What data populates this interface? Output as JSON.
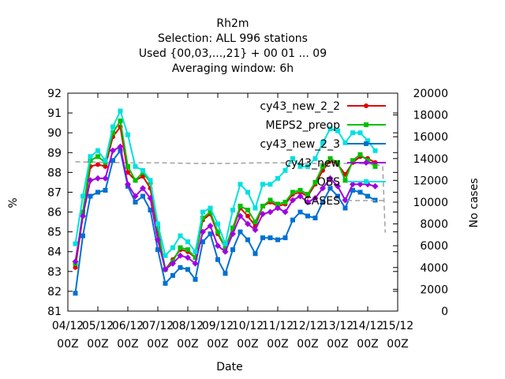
{
  "chart_data": {
    "type": "line",
    "title_lines": [
      "Rh2m",
      "Selection: ALL    996 stations",
      "Used {00,03,...,21} + 00 01 ... 09",
      "Averaging window:  6h"
    ],
    "xlabel": "Date",
    "ylabel": "%",
    "y2label": "No cases",
    "ylim": [
      81,
      92
    ],
    "y2lim": [
      0,
      20000
    ],
    "grid": false,
    "legend_position": "top-right",
    "x_tick_labels": [
      "04/12\n00Z",
      "05/12\n00Z",
      "06/12\n00Z",
      "07/12\n00Z",
      "08/12\n00Z",
      "09/12\n00Z",
      "10/12\n00Z",
      "11/12\n00Z",
      "12/12\n00Z",
      "13/12\n00Z",
      "14/12\n00Z",
      "15/12\n00Z"
    ],
    "x_range_hours": [
      0,
      264
    ],
    "y_ticks": [
      81,
      82,
      83,
      84,
      85,
      86,
      87,
      88,
      89,
      90,
      91,
      92
    ],
    "y2_ticks": [
      0,
      2000,
      4000,
      6000,
      8000,
      10000,
      12000,
      14000,
      16000,
      18000,
      20000
    ],
    "x_hours": [
      6,
      12,
      18,
      24,
      30,
      36,
      42,
      48,
      54,
      60,
      66,
      72,
      78,
      84,
      90,
      96,
      102,
      108,
      114,
      120,
      126,
      132,
      138,
      144,
      150,
      156,
      162,
      168,
      174,
      180,
      186,
      192,
      198,
      204,
      210,
      216,
      222,
      228,
      234,
      240,
      246,
      252
    ],
    "series": [
      {
        "name": "cy43_new_2_2",
        "color": "#e00000",
        "marker": "circle",
        "values": [
          83.2,
          85.8,
          88.3,
          88.4,
          88.3,
          89.8,
          90.3,
          88.0,
          87.6,
          87.8,
          87.2,
          85.0,
          83.1,
          83.6,
          84.1,
          84.0,
          83.7,
          85.6,
          85.9,
          84.9,
          84.2,
          85.1,
          86.2,
          85.8,
          85.3,
          86.3,
          86.5,
          86.3,
          86.4,
          86.9,
          87.0,
          86.8,
          87.4,
          88.1,
          88.6,
          88.4,
          87.9,
          88.5,
          88.8,
          88.7,
          88.5,
          null
        ]
      },
      {
        "name": "MEPS2_preop",
        "color": "#00c000",
        "marker": "square",
        "values": [
          83.4,
          86.0,
          88.6,
          88.8,
          88.5,
          90.0,
          90.6,
          88.3,
          87.6,
          88.0,
          87.5,
          85.2,
          83.1,
          83.5,
          84.2,
          84.1,
          83.7,
          85.7,
          86.0,
          85.0,
          84.2,
          85.2,
          86.3,
          86.1,
          85.5,
          86.3,
          86.6,
          86.4,
          86.5,
          87.0,
          87.1,
          86.9,
          87.5,
          88.3,
          88.7,
          88.5,
          87.6,
          88.6,
          88.9,
          88.6,
          88.3,
          null
        ]
      },
      {
        "name": "cy43_new_2_3",
        "color": "#0070d0",
        "marker": "square",
        "values": [
          81.9,
          84.8,
          86.8,
          87.0,
          87.1,
          88.6,
          89.1,
          87.3,
          86.5,
          86.8,
          86.1,
          84.1,
          82.4,
          82.8,
          83.2,
          83.1,
          82.6,
          84.5,
          84.9,
          83.6,
          82.9,
          84.1,
          85.0,
          84.6,
          83.9,
          84.7,
          84.7,
          84.6,
          84.7,
          85.6,
          86.0,
          85.8,
          85.7,
          86.5,
          87.2,
          86.8,
          86.2,
          87.1,
          87.0,
          86.8,
          86.6,
          null
        ]
      },
      {
        "name": "cy43_new",
        "color": "#a000e0",
        "marker": "diamond",
        "values": [
          83.5,
          85.8,
          87.6,
          87.7,
          87.7,
          89.1,
          89.3,
          87.4,
          86.8,
          87.2,
          86.7,
          84.6,
          83.1,
          83.4,
          83.8,
          83.7,
          83.4,
          85.0,
          85.3,
          84.3,
          84.0,
          84.9,
          85.8,
          85.4,
          85.1,
          85.9,
          86.0,
          86.2,
          86.0,
          86.6,
          86.8,
          86.5,
          86.7,
          87.2,
          87.7,
          87.3,
          86.6,
          87.4,
          87.4,
          87.4,
          87.3,
          null
        ]
      },
      {
        "name": "OBS",
        "color": "#00e0e0",
        "marker": "square",
        "values": [
          84.4,
          86.8,
          88.8,
          89.1,
          88.6,
          90.3,
          91.1,
          89.9,
          88.3,
          88.1,
          87.6,
          85.4,
          83.8,
          84.2,
          84.8,
          84.5,
          84.0,
          86.0,
          86.2,
          85.4,
          84.4,
          86.1,
          87.4,
          87.0,
          86.2,
          87.4,
          87.4,
          87.7,
          88.1,
          88.7,
          88.3,
          88.3,
          88.7,
          89.5,
          90.2,
          90.1,
          89.5,
          90.0,
          90.0,
          89.6,
          89.1,
          null
        ]
      }
    ],
    "cases_series": {
      "name": "CASES",
      "color": "#a0a0a0",
      "dash": "dashed",
      "x_hours": [
        6,
        30,
        54,
        78,
        102,
        126,
        150,
        174,
        198,
        222,
        246,
        252,
        254
      ],
      "values": [
        13700,
        13650,
        13600,
        13600,
        13550,
        13550,
        13600,
        13600,
        13550,
        13550,
        13500,
        13300,
        7200
      ]
    }
  }
}
